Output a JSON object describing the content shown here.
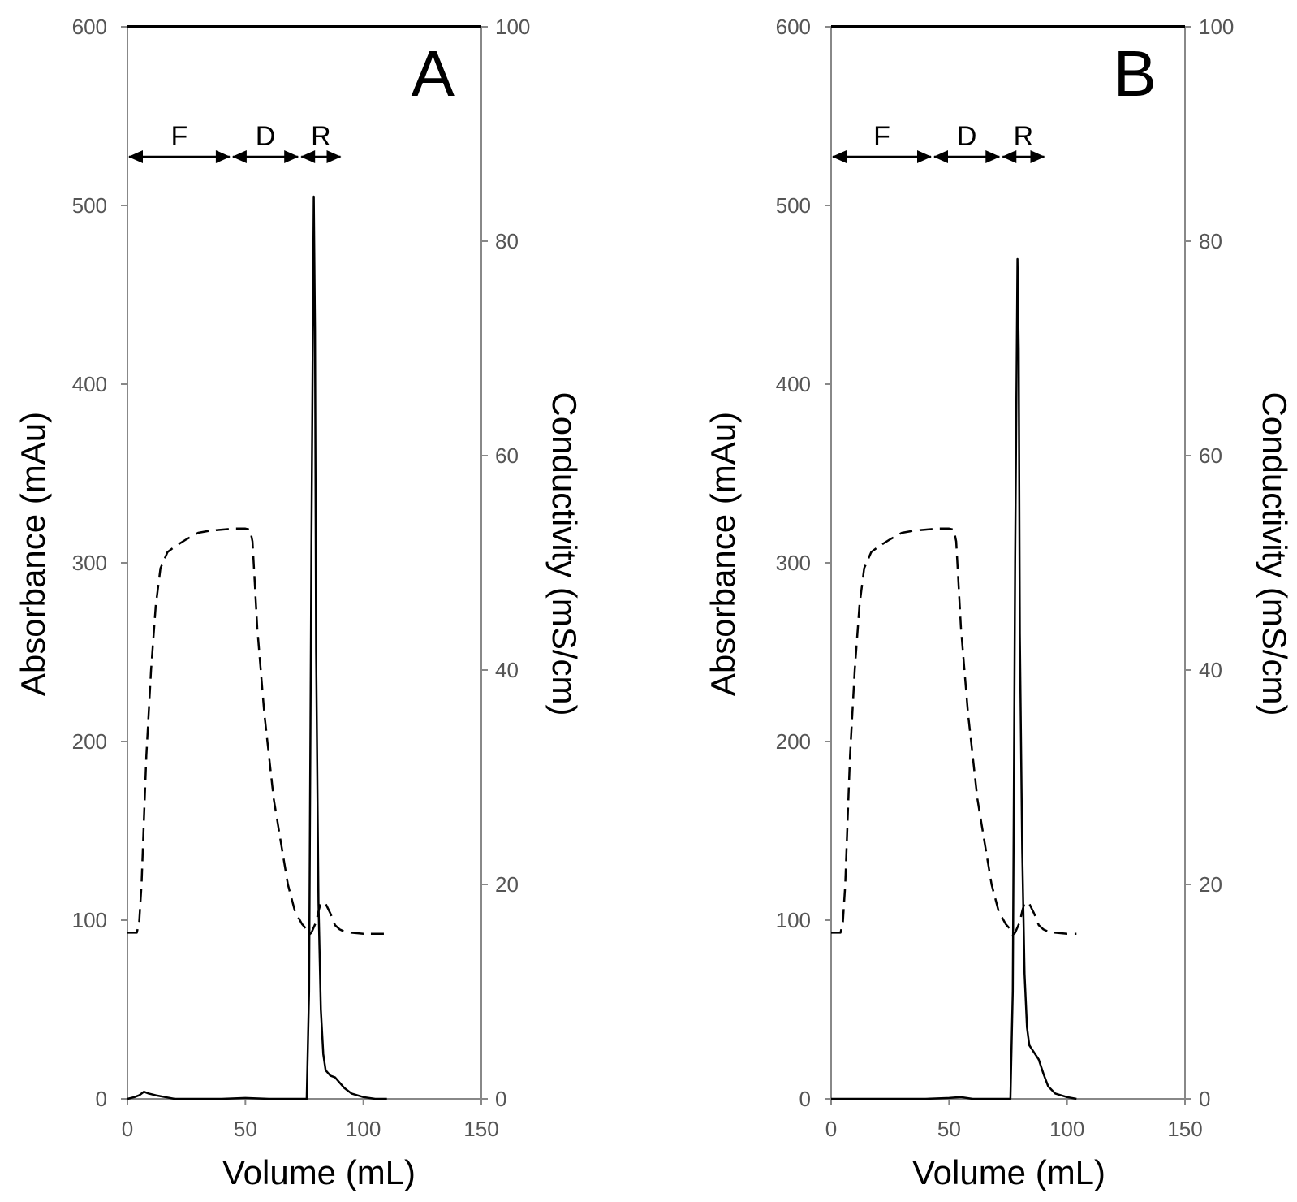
{
  "chart_data": [
    {
      "type": "line",
      "panel_label": "A",
      "xlabel": "Volume (mL)",
      "ylabel": "Absorbance (mAu)",
      "y2label": "Conductivity (mS/cm)",
      "xlim": [
        0,
        150
      ],
      "ylim": [
        0,
        600
      ],
      "y2lim": [
        0,
        100
      ],
      "xticks": [
        "0",
        "50",
        "100",
        "150"
      ],
      "yticks": [
        "0",
        "100",
        "200",
        "300",
        "400",
        "500",
        "600"
      ],
      "y2ticks": [
        "0",
        "20",
        "40",
        "60",
        "80",
        "100"
      ],
      "regions": [
        {
          "label": "F",
          "start": 0,
          "end": 44
        },
        {
          "label": "D",
          "start": 44,
          "end": 73
        },
        {
          "label": "R",
          "start": 73,
          "end": 91
        }
      ],
      "series": [
        {
          "name": "Absorbance",
          "axis": "left",
          "style": "solid",
          "x": [
            0,
            3,
            5,
            7,
            9,
            12,
            16,
            20,
            30,
            40,
            50,
            60,
            70,
            76,
            77,
            78,
            79,
            79.5,
            80,
            81,
            82,
            83,
            84,
            86,
            88,
            90,
            92,
            95,
            100,
            105,
            110
          ],
          "y": [
            0,
            1,
            2,
            4,
            3,
            2,
            1,
            0,
            0,
            0,
            0.5,
            0,
            0,
            0,
            60,
            310,
            505,
            430,
            250,
            110,
            50,
            25,
            16,
            13,
            12,
            9,
            6,
            3,
            1,
            0,
            0
          ]
        },
        {
          "name": "Conductivity",
          "axis": "right",
          "style": "dashed",
          "x": [
            0,
            4,
            5,
            6,
            7,
            8,
            10,
            12,
            14,
            17,
            20,
            25,
            30,
            35,
            40,
            45,
            50,
            52,
            53,
            55,
            58,
            60,
            62,
            65,
            68,
            71,
            74,
            76,
            77,
            78,
            80,
            81,
            82,
            84,
            86,
            88,
            90,
            92,
            95,
            100,
            105,
            110
          ],
          "y": [
            15.5,
            15.5,
            16.5,
            20,
            26,
            32,
            40,
            46,
            49.5,
            51,
            51.5,
            52.2,
            52.8,
            53,
            53.1,
            53.2,
            53.2,
            53.1,
            52,
            44,
            36,
            32,
            28,
            24,
            20,
            17.5,
            16.3,
            15.8,
            15.3,
            15.5,
            16.5,
            17.5,
            18.3,
            18.2,
            17.3,
            16.2,
            15.8,
            15.6,
            15.5,
            15.4,
            15.4,
            15.4
          ]
        }
      ]
    },
    {
      "type": "line",
      "panel_label": "B",
      "xlabel": "Volume (mL)",
      "ylabel": "Absorbance (mAu)",
      "y2label": "Conductivity (mS/cm)",
      "xlim": [
        0,
        150
      ],
      "ylim": [
        0,
        600
      ],
      "y2lim": [
        0,
        100
      ],
      "xticks": [
        "0",
        "50",
        "100",
        "150"
      ],
      "yticks": [
        "0",
        "100",
        "200",
        "300",
        "400",
        "500",
        "600"
      ],
      "y2ticks": [
        "0",
        "20",
        "40",
        "60",
        "80",
        "100"
      ],
      "regions": [
        {
          "label": "F",
          "start": 0,
          "end": 43
        },
        {
          "label": "D",
          "start": 43,
          "end": 72
        },
        {
          "label": "R",
          "start": 72,
          "end": 91
        }
      ],
      "series": [
        {
          "name": "Absorbance",
          "axis": "left",
          "style": "solid",
          "x": [
            0,
            10,
            20,
            30,
            40,
            50,
            55,
            60,
            70,
            76,
            77,
            78,
            79,
            79.5,
            80,
            81,
            82,
            83,
            84,
            86,
            88,
            90,
            92,
            95,
            100,
            104
          ],
          "y": [
            0,
            0,
            0,
            0,
            0,
            0.5,
            1,
            0,
            0,
            0,
            60,
            300,
            470,
            420,
            260,
            140,
            70,
            40,
            30,
            26,
            22,
            14,
            7,
            3,
            1,
            0
          ]
        },
        {
          "name": "Conductivity",
          "axis": "right",
          "style": "dashed",
          "x": [
            0,
            4,
            5,
            6,
            7,
            8,
            10,
            12,
            14,
            17,
            20,
            25,
            30,
            35,
            40,
            45,
            50,
            52,
            53,
            55,
            58,
            60,
            62,
            65,
            68,
            71,
            74,
            76,
            77,
            78,
            80,
            81,
            82,
            84,
            86,
            88,
            90,
            92,
            95,
            100,
            104
          ],
          "y": [
            15.5,
            15.5,
            16.5,
            20,
            26,
            32,
            40,
            46,
            49.5,
            51,
            51.5,
            52.2,
            52.8,
            53,
            53.1,
            53.2,
            53.2,
            53.1,
            52,
            44,
            36,
            32,
            28,
            24,
            20,
            17.5,
            16.3,
            15.8,
            15.3,
            15.5,
            16.5,
            17.5,
            18.3,
            18.2,
            17.3,
            16.2,
            15.8,
            15.6,
            15.5,
            15.4,
            15.4
          ]
        }
      ]
    }
  ]
}
